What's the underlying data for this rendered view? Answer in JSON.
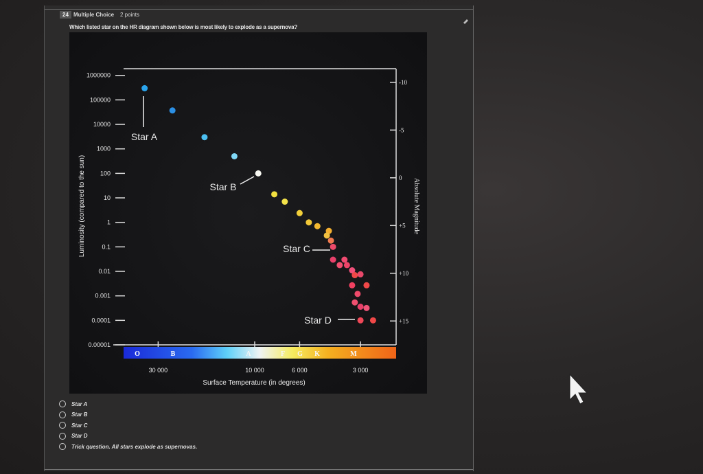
{
  "quiz": {
    "number": 24,
    "type": "Multiple Choice",
    "points": "2 points",
    "question": "Which listed star on the HR diagram shown below is most likely to explode as a supernova?",
    "options": [
      "Star A",
      "Star B",
      "Star C",
      "Star D",
      "Trick question. All stars explode as supernovas."
    ]
  },
  "figure": {
    "chart_data": {
      "type": "scatter",
      "y_label": "Luminosity (compared to the sun)",
      "y2_label": "Absolute Magnitude",
      "x_label": "Surface Temperature (in degrees)",
      "xscale": "log",
      "yscale": "log",
      "xlim": [
        50000,
        2000
      ],
      "ylim": [
        1e-05,
        2000000
      ],
      "y2lim": [
        -11.5,
        17.5
      ],
      "xticks": [
        {
          "value": 30000,
          "label": "30 000"
        },
        {
          "value": 10000,
          "label": "10 000"
        },
        {
          "value": 6000,
          "label": "6 000"
        },
        {
          "value": 3000,
          "label": "3 000"
        }
      ],
      "yticks": [
        1000000,
        100000,
        10000,
        1000,
        100,
        10,
        1,
        0.1,
        0.01,
        0.001,
        0.0001,
        1e-05
      ],
      "y2ticks": [
        -10,
        -5,
        0,
        {
          "value": 5,
          "label": "+5"
        },
        {
          "value": 10,
          "label": "+10"
        },
        {
          "value": 15,
          "label": "+15"
        }
      ],
      "spectral_classes": [
        "O",
        "B",
        "A",
        "F",
        "G",
        "K",
        "M"
      ],
      "annotations": [
        "Star A",
        "Star B",
        "Star C",
        "Star D"
      ],
      "series": [
        {
          "x": [
            35000,
            25500,
            17700,
            12600,
            9600,
            8000,
            7100,
            6000,
            5400,
            4900,
            4300,
            4400,
            4200,
            4100,
            4100,
            3600,
            3800,
            3500,
            3300,
            3000,
            3200,
            3300,
            2800,
            3100,
            3200,
            3000,
            2800,
            3000,
            2600
          ],
          "values": [
            300000,
            37000,
            3000,
            500,
            100,
            14,
            7,
            2.4,
            1,
            0.7,
            0.45,
            0.29,
            0.18,
            0.1,
            0.03,
            0.03,
            0.018,
            0.018,
            0.011,
            0.0076,
            0.007,
            0.0027,
            0.0027,
            0.0012,
            0.00054,
            0.00036,
            0.00032,
            0.0001,
            0.0001
          ],
          "colors": [
            "#2aa4ec",
            "#2b8fe4",
            "#4cc0f2",
            "#80d8f6",
            "#f6f6f0",
            "#f2e040",
            "#f3e24a",
            "#f2cf3a",
            "#f2c838",
            "#f4b830",
            "#f5b030",
            "#f2c040",
            "#f07a50",
            "#ee4a6a",
            "#e8406a",
            "#f04a70",
            "#f05070",
            "#ee4468",
            "#f0507a",
            "#e8486a",
            "#f04848",
            "#f04060",
            "#f04848",
            "#ee4a6a",
            "#f05070",
            "#e8406a",
            "#f05478",
            "#f04858",
            "#f04848"
          ]
        }
      ]
    }
  }
}
